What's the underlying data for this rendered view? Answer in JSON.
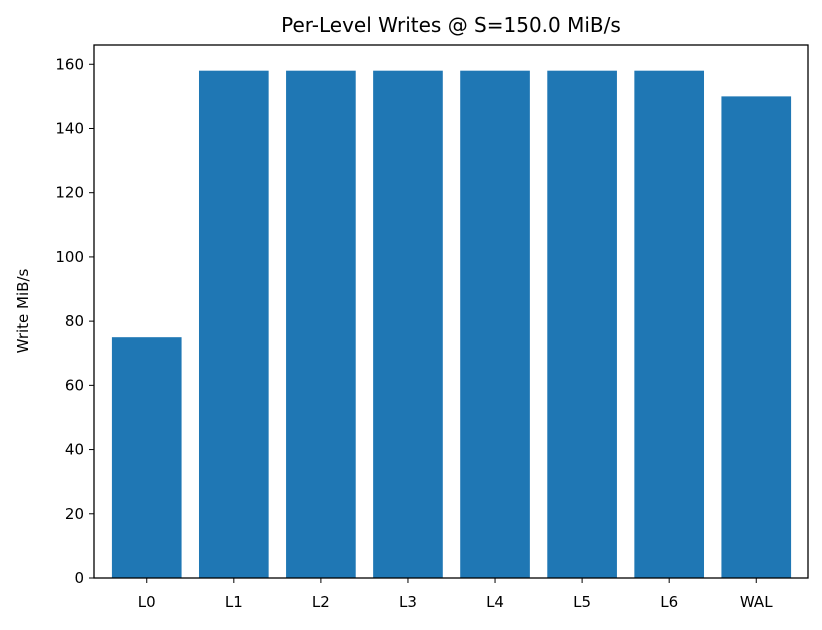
{
  "chart_data": {
    "type": "bar",
    "title": "Per-Level Writes @ S=150.0 MiB/s",
    "xlabel": "",
    "ylabel": "Write MiB/s",
    "categories": [
      "L0",
      "L1",
      "L2",
      "L3",
      "L4",
      "L5",
      "L6",
      "WAL"
    ],
    "values": [
      75,
      158,
      158,
      158,
      158,
      158,
      158,
      150
    ],
    "ylim": [
      0,
      166
    ],
    "yticks": [
      0,
      20,
      40,
      60,
      80,
      100,
      120,
      140,
      160
    ],
    "grid": false,
    "legend": "none",
    "bar_color": "#1f77b4"
  }
}
